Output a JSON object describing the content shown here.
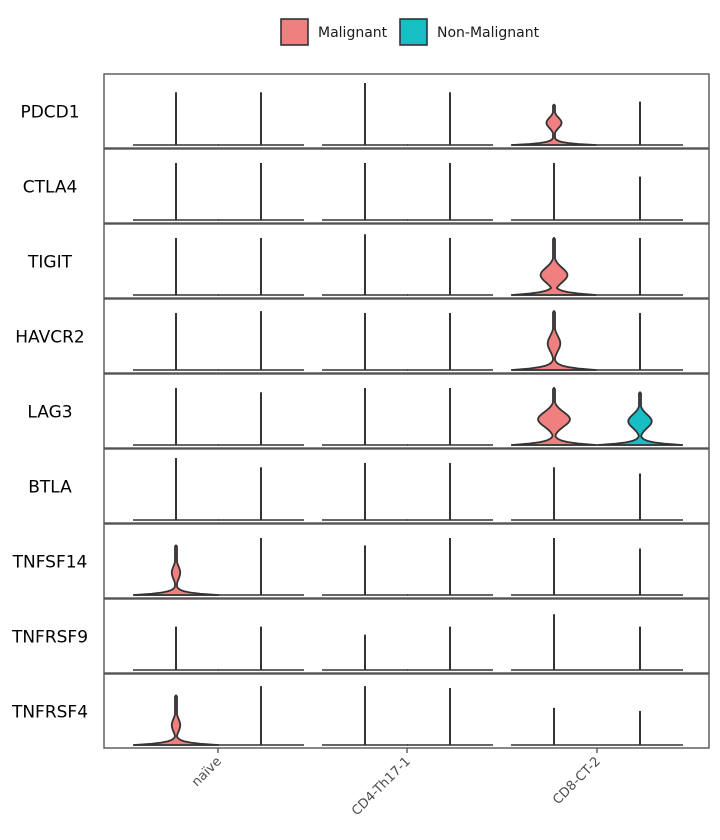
{
  "chart_data": {
    "type": "violin",
    "genes": [
      "PDCD1",
      "CTLA4",
      "TIGIT",
      "HAVCR2",
      "LAG3",
      "BTLA",
      "TNFSF14",
      "TNFRSF9",
      "TNFRSF4"
    ],
    "groups": [
      "naïve",
      "CD4-Th17-1",
      "CD8-CT-2"
    ],
    "series": [
      {
        "name": "Malignant",
        "color": "#F08080"
      },
      {
        "name": "Non-Malignant",
        "color": "#17BEC4"
      }
    ],
    "legend_position": "top",
    "grid": false,
    "violins": {
      "PDCD1": [
        [
          {
            "max": 0.85,
            "mode": "spike"
          },
          {
            "max": 0.85,
            "mode": "spike"
          }
        ],
        [
          {
            "max": 1.0,
            "mode": "spike"
          },
          {
            "max": 0.85,
            "mode": "spike"
          }
        ],
        [
          {
            "max": 0.65,
            "mode": "shape",
            "bulge": 0.55,
            "bulgeW": 0.18,
            "baseW": 1.0
          },
          {
            "max": 0.7,
            "mode": "spike"
          }
        ]
      ],
      "CTLA4": [
        [
          {
            "max": 0.92,
            "mode": "spike"
          },
          {
            "max": 0.92,
            "mode": "spike"
          }
        ],
        [
          {
            "max": 0.92,
            "mode": "spike"
          },
          {
            "max": 0.92,
            "mode": "spike"
          }
        ],
        [
          {
            "max": 0.92,
            "mode": "spike"
          },
          {
            "max": 0.7,
            "mode": "spike"
          }
        ]
      ],
      "TIGIT": [
        [
          {
            "max": 0.92,
            "mode": "spike"
          },
          {
            "max": 0.92,
            "mode": "spike"
          }
        ],
        [
          {
            "max": 0.98,
            "mode": "spike"
          },
          {
            "max": 0.92,
            "mode": "spike"
          }
        ],
        [
          {
            "max": 0.92,
            "mode": "shape",
            "bulge": 0.35,
            "bulgeW": 0.32,
            "baseW": 1.0
          },
          {
            "max": 0.92,
            "mode": "spike"
          }
        ]
      ],
      "HAVCR2": [
        [
          {
            "max": 0.92,
            "mode": "spike"
          },
          {
            "max": 0.95,
            "mode": "spike"
          }
        ],
        [
          {
            "max": 0.92,
            "mode": "spike"
          },
          {
            "max": 0.92,
            "mode": "spike"
          }
        ],
        [
          {
            "max": 0.95,
            "mode": "shape",
            "bulge": 0.45,
            "bulgeW": 0.15,
            "baseW": 1.0
          },
          {
            "max": 0.92,
            "mode": "spike"
          }
        ]
      ],
      "LAG3": [
        [
          {
            "max": 0.92,
            "mode": "spike"
          },
          {
            "max": 0.85,
            "mode": "spike"
          }
        ],
        [
          {
            "max": 0.92,
            "mode": "spike"
          },
          {
            "max": 0.92,
            "mode": "spike"
          }
        ],
        [
          {
            "max": 0.92,
            "mode": "shape",
            "bulge": 0.45,
            "bulgeW": 0.38,
            "baseW": 1.0
          },
          {
            "max": 0.85,
            "mode": "shape",
            "bulge": 0.45,
            "bulgeW": 0.28,
            "baseW": 1.0
          }
        ]
      ],
      "BTLA": [
        [
          {
            "max": 1.0,
            "mode": "spike"
          },
          {
            "max": 0.85,
            "mode": "spike"
          }
        ],
        [
          {
            "max": 0.92,
            "mode": "spike"
          },
          {
            "max": 0.92,
            "mode": "spike"
          }
        ],
        [
          {
            "max": 0.85,
            "mode": "spike"
          },
          {
            "max": 0.75,
            "mode": "spike"
          }
        ]
      ],
      "TNFSF14": [
        [
          {
            "max": 0.8,
            "mode": "shape",
            "bulge": 0.45,
            "bulgeW": 0.1,
            "baseW": 1.0
          },
          {
            "max": 0.92,
            "mode": "spike"
          }
        ],
        [
          {
            "max": 0.8,
            "mode": "spike"
          },
          {
            "max": 0.92,
            "mode": "spike"
          }
        ],
        [
          {
            "max": 0.92,
            "mode": "spike"
          },
          {
            "max": 0.75,
            "mode": "spike"
          }
        ]
      ],
      "TNFRSF9": [
        [
          {
            "max": 0.7,
            "mode": "spike"
          },
          {
            "max": 0.7,
            "mode": "spike"
          }
        ],
        [
          {
            "max": 0.57,
            "mode": "spike"
          },
          {
            "max": 0.7,
            "mode": "spike"
          }
        ],
        [
          {
            "max": 0.9,
            "mode": "spike"
          },
          {
            "max": 0.7,
            "mode": "spike"
          }
        ]
      ],
      "TNFRSF4": [
        [
          {
            "max": 0.8,
            "mode": "shape",
            "bulge": 0.4,
            "bulgeW": 0.1,
            "baseW": 1.0
          },
          {
            "max": 0.95,
            "mode": "spike"
          }
        ],
        [
          {
            "max": 0.95,
            "mode": "spike"
          },
          {
            "max": 0.92,
            "mode": "spike"
          }
        ],
        [
          {
            "max": 0.6,
            "mode": "spike"
          },
          {
            "max": 0.55,
            "mode": "spike"
          }
        ]
      ]
    }
  }
}
